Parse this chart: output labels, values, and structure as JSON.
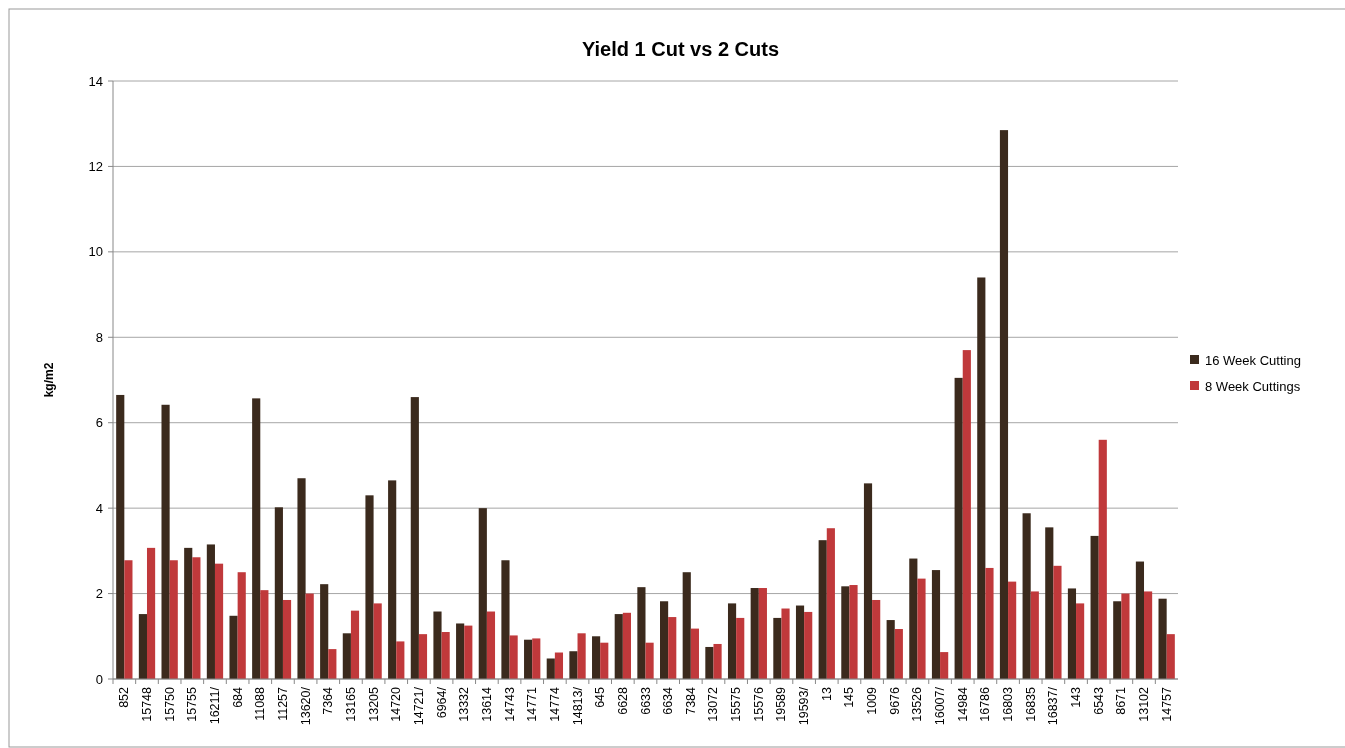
{
  "chart_data": {
    "type": "bar",
    "title": "Yield  1 Cut vs 2 Cuts",
    "ylabel": "kg/m2",
    "categories": [
      "852",
      "15748",
      "15750",
      "15755",
      "16211/",
      "684",
      "11088",
      "11257",
      "13620/",
      "7364",
      "13165",
      "13205",
      "14720",
      "14721/",
      "6964/",
      "13332",
      "13614",
      "14743",
      "14771",
      "14774",
      "14813/",
      "645",
      "6628",
      "6633",
      "6634",
      "7384",
      "13072",
      "15575",
      "15576",
      "19589",
      "19593/",
      "13",
      "145",
      "1009",
      "9676",
      "13526",
      "16007/",
      "14984",
      "16786",
      "16803",
      "16835",
      "16837/",
      "143",
      "6543",
      "8671",
      "13102",
      "14757"
    ],
    "series": [
      {
        "name": "16 Week Cutting",
        "color": "#3b2a1d",
        "values": [
          6.65,
          1.52,
          6.42,
          3.07,
          3.15,
          1.48,
          6.57,
          4.02,
          4.7,
          2.22,
          1.07,
          4.3,
          4.65,
          6.6,
          1.58,
          1.3,
          4.0,
          2.78,
          0.92,
          0.48,
          0.65,
          1.0,
          1.52,
          2.15,
          1.82,
          2.5,
          0.75,
          1.77,
          2.13,
          1.43,
          1.72,
          3.25,
          2.17,
          4.58,
          1.38,
          2.82,
          2.55,
          7.05,
          9.4,
          12.85,
          3.88,
          3.55,
          2.12,
          3.35,
          1.82,
          2.75,
          1.88
        ]
      },
      {
        "name": "8 Week Cuttings",
        "color": "#c0393b",
        "values": [
          2.78,
          3.07,
          2.78,
          2.85,
          2.7,
          2.5,
          2.08,
          1.85,
          2.0,
          0.7,
          1.6,
          1.77,
          0.88,
          1.05,
          1.1,
          1.25,
          1.58,
          1.02,
          0.95,
          0.62,
          1.07,
          0.85,
          1.55,
          0.85,
          1.45,
          1.18,
          0.82,
          1.43,
          2.13,
          1.65,
          1.57,
          3.53,
          2.2,
          1.85,
          1.17,
          2.35,
          0.63,
          7.7,
          2.6,
          2.28,
          2.05,
          2.65,
          1.77,
          5.6,
          2.0,
          2.05,
          1.05
        ]
      }
    ],
    "ylim": [
      0,
      14
    ],
    "yticks": [
      0,
      2,
      4,
      6,
      8,
      10,
      12,
      14
    ],
    "grid": "y",
    "legend": "right"
  }
}
